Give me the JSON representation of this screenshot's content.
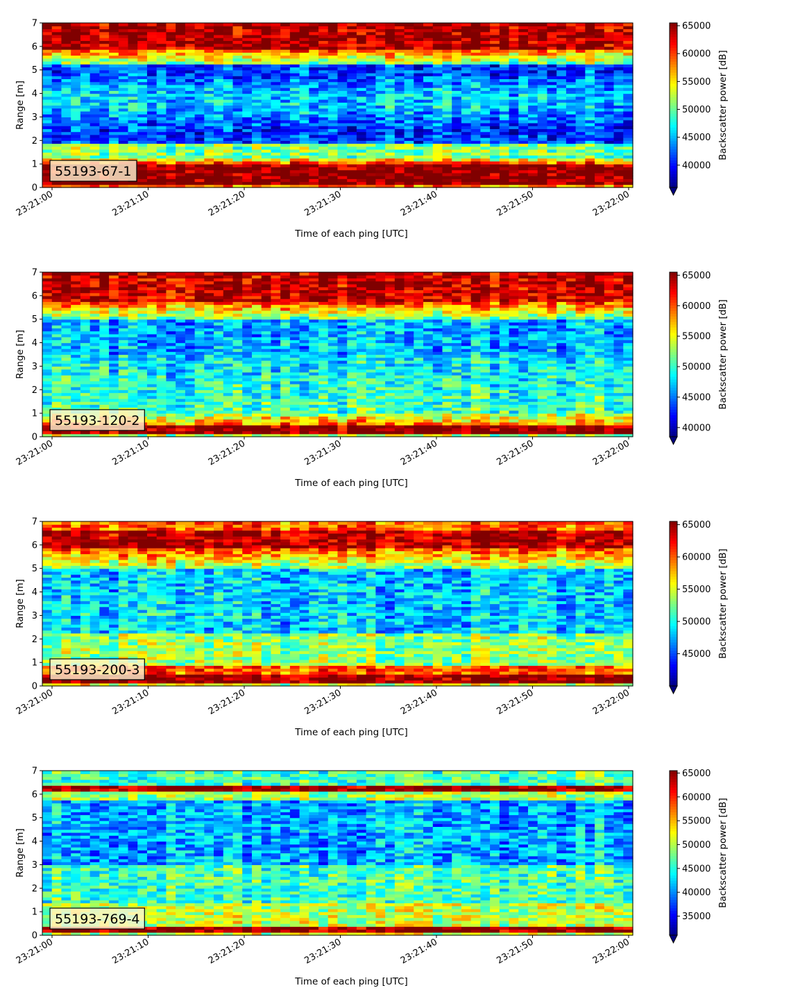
{
  "chart_data": [
    {
      "type": "heatmap",
      "panel_label": "55193-67-1",
      "xlabel": "Time of each ping [UTC]",
      "ylabel": "Range [m]",
      "ylim": [
        0,
        7
      ],
      "yticks": [
        "0",
        "1",
        "2",
        "3",
        "4",
        "5",
        "6",
        "7"
      ],
      "xticks": [
        "23:21:00",
        "23:21:10",
        "23:21:20",
        "23:21:30",
        "23:21:40",
        "23:21:50",
        "23:22:00"
      ],
      "colorbar": {
        "label": "Backscatter power [dB]",
        "min": 36000,
        "max": 65500,
        "ticks": [
          "40000",
          "45000",
          "50000",
          "55000",
          "60000",
          "65000"
        ],
        "tick_values": [
          40000,
          45000,
          50000,
          55000,
          60000,
          65000
        ],
        "extend": "min"
      },
      "colormap": "jet",
      "profile_description": "strong return (dark red) near 0.2-1.1 m and above 6.0 m; blue/cyan water column 1.5-5.5 m"
    },
    {
      "type": "heatmap",
      "panel_label": "55193-120-2",
      "xlabel": "Time of each ping [UTC]",
      "ylabel": "Range [m]",
      "ylim": [
        0,
        7
      ],
      "yticks": [
        "0",
        "1",
        "2",
        "3",
        "4",
        "5",
        "6",
        "7"
      ],
      "xticks": [
        "23:21:00",
        "23:21:10",
        "23:21:20",
        "23:21:30",
        "23:21:40",
        "23:21:50",
        "23:22:00"
      ],
      "colorbar": {
        "label": "Backscatter power [dB]",
        "min": 38500,
        "max": 65500,
        "ticks": [
          "40000",
          "45000",
          "50000",
          "55000",
          "60000",
          "65000"
        ],
        "tick_values": [
          40000,
          45000,
          50000,
          55000,
          60000,
          65000
        ],
        "extend": "min"
      },
      "colormap": "jet",
      "profile_description": "strong return near 0.1-0.6 m and above 5.8 m; mixed blue/green water column 1-5 m"
    },
    {
      "type": "heatmap",
      "panel_label": "55193-200-3",
      "xlabel": "Time of each ping [UTC]",
      "ylabel": "Range [m]",
      "ylim": [
        0,
        7
      ],
      "yticks": [
        "0",
        "1",
        "2",
        "3",
        "4",
        "5",
        "6",
        "7"
      ],
      "xticks": [
        "23:21:00",
        "23:21:10",
        "23:21:20",
        "23:21:30",
        "23:21:40",
        "23:21:50",
        "23:22:00"
      ],
      "colorbar": {
        "label": "Backscatter power [dB]",
        "min": 40000,
        "max": 65500,
        "ticks": [
          "45000",
          "50000",
          "55000",
          "60000",
          "65000"
        ],
        "tick_values": [
          45000,
          50000,
          55000,
          60000,
          65000
        ],
        "extend": "min"
      },
      "colormap": "jet",
      "profile_description": "strong return near 0.2-0.6 m and band at 6.0-6.6 m; blue water column 2-5 m"
    },
    {
      "type": "heatmap",
      "panel_label": "55193-769-4",
      "xlabel": "Time of each ping [UTC]",
      "ylabel": "Range [m]",
      "ylim": [
        0,
        7
      ],
      "yticks": [
        "0",
        "1",
        "2",
        "3",
        "4",
        "5",
        "6",
        "7"
      ],
      "xticks": [
        "23:21:00",
        "23:21:10",
        "23:21:20",
        "23:21:30",
        "23:21:40",
        "23:21:50",
        "23:22:00"
      ],
      "colorbar": {
        "label": "Backscatter power [dB]",
        "min": 31000,
        "max": 65500,
        "ticks": [
          "35000",
          "40000",
          "45000",
          "50000",
          "55000",
          "60000",
          "65000"
        ],
        "tick_values": [
          35000,
          40000,
          45000,
          50000,
          55000,
          60000,
          65000
        ],
        "extend": "min"
      },
      "colormap": "jet",
      "profile_description": "thin strong band at 0.2-0.4 m and at 6.1-6.4 m; mostly blue water column"
    }
  ]
}
